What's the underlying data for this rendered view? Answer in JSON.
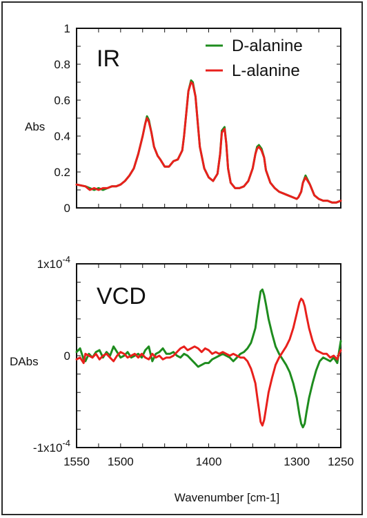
{
  "chart_data": [
    {
      "type": "line",
      "panel_label": "IR",
      "ylabel": "Abs",
      "ylim": [
        0,
        1
      ],
      "xlim": [
        1550,
        1250
      ],
      "y_ticks": [
        "1",
        "0.8",
        "0.6",
        "0.4",
        "0.2",
        "0"
      ],
      "y_tick_values": [
        1,
        0.8,
        0.6,
        0.4,
        0.2,
        0
      ],
      "legend_position": "top-right",
      "colors": {
        "D-alanine": "#1e8c1e",
        "L-alanine": "#e8201c"
      },
      "series": [
        {
          "name": "D-alanine",
          "x": [
            1550,
            1540,
            1535,
            1530,
            1525,
            1520,
            1515,
            1510,
            1505,
            1500,
            1495,
            1490,
            1485,
            1480,
            1475,
            1472,
            1470,
            1468,
            1465,
            1462,
            1458,
            1455,
            1450,
            1445,
            1440,
            1435,
            1430,
            1428,
            1425,
            1423,
            1420,
            1418,
            1415,
            1412,
            1410,
            1405,
            1400,
            1395,
            1390,
            1387,
            1385,
            1382,
            1380,
            1378,
            1375,
            1370,
            1365,
            1360,
            1355,
            1350,
            1347,
            1345,
            1343,
            1340,
            1337,
            1335,
            1330,
            1325,
            1320,
            1315,
            1310,
            1305,
            1300,
            1298,
            1295,
            1293,
            1290,
            1285,
            1280,
            1275,
            1270,
            1265,
            1260,
            1255,
            1250
          ],
          "y": [
            0.13,
            0.12,
            0.11,
            0.1,
            0.11,
            0.1,
            0.11,
            0.12,
            0.12,
            0.13,
            0.15,
            0.18,
            0.22,
            0.3,
            0.4,
            0.47,
            0.51,
            0.49,
            0.42,
            0.34,
            0.29,
            0.27,
            0.23,
            0.23,
            0.26,
            0.27,
            0.32,
            0.4,
            0.55,
            0.65,
            0.71,
            0.7,
            0.62,
            0.45,
            0.34,
            0.22,
            0.17,
            0.15,
            0.19,
            0.3,
            0.43,
            0.45,
            0.36,
            0.22,
            0.14,
            0.11,
            0.11,
            0.12,
            0.15,
            0.22,
            0.3,
            0.34,
            0.35,
            0.33,
            0.28,
            0.21,
            0.14,
            0.11,
            0.09,
            0.08,
            0.07,
            0.06,
            0.05,
            0.06,
            0.09,
            0.14,
            0.18,
            0.13,
            0.07,
            0.05,
            0.04,
            0.04,
            0.03,
            0.03,
            0.04
          ]
        },
        {
          "name": "L-alanine",
          "x": [
            1550,
            1540,
            1535,
            1530,
            1525,
            1520,
            1515,
            1510,
            1505,
            1500,
            1495,
            1490,
            1485,
            1480,
            1475,
            1472,
            1470,
            1468,
            1465,
            1462,
            1458,
            1455,
            1450,
            1445,
            1440,
            1435,
            1430,
            1428,
            1425,
            1423,
            1420,
            1418,
            1415,
            1412,
            1410,
            1405,
            1400,
            1395,
            1390,
            1387,
            1385,
            1382,
            1380,
            1378,
            1375,
            1370,
            1365,
            1360,
            1355,
            1350,
            1347,
            1345,
            1343,
            1340,
            1337,
            1335,
            1330,
            1325,
            1320,
            1315,
            1310,
            1305,
            1300,
            1298,
            1295,
            1293,
            1290,
            1285,
            1280,
            1275,
            1270,
            1265,
            1260,
            1255,
            1250
          ],
          "y": [
            0.13,
            0.12,
            0.1,
            0.11,
            0.1,
            0.11,
            0.11,
            0.12,
            0.12,
            0.13,
            0.15,
            0.18,
            0.22,
            0.3,
            0.4,
            0.47,
            0.5,
            0.48,
            0.42,
            0.34,
            0.29,
            0.27,
            0.23,
            0.23,
            0.26,
            0.27,
            0.32,
            0.4,
            0.55,
            0.65,
            0.7,
            0.69,
            0.62,
            0.45,
            0.34,
            0.22,
            0.17,
            0.15,
            0.19,
            0.3,
            0.42,
            0.44,
            0.36,
            0.22,
            0.14,
            0.11,
            0.11,
            0.12,
            0.15,
            0.22,
            0.3,
            0.33,
            0.34,
            0.32,
            0.28,
            0.21,
            0.14,
            0.11,
            0.09,
            0.08,
            0.07,
            0.06,
            0.05,
            0.06,
            0.09,
            0.14,
            0.17,
            0.13,
            0.07,
            0.05,
            0.04,
            0.04,
            0.03,
            0.03,
            0.04
          ]
        }
      ]
    },
    {
      "type": "line",
      "panel_label": "VCD",
      "ylabel": "DAbs",
      "xlabel": "Wavenumber [cm-1]",
      "ylim": [
        -0.0001,
        0.0001
      ],
      "xlim": [
        1550,
        1250
      ],
      "x_ticks": [
        "1550",
        "1500",
        "1400",
        "1300",
        "1250"
      ],
      "x_tick_values": [
        1550,
        1500,
        1400,
        1300,
        1250
      ],
      "y_ticks": [
        {
          "base": "1x10",
          "exp": "-4",
          "value": 0.0001
        },
        {
          "base": "0",
          "exp": "",
          "value": 0
        },
        {
          "base": "-1x10",
          "exp": "-4",
          "value": -0.0001
        }
      ],
      "colors": {
        "D-alanine": "#1e8c1e",
        "L-alanine": "#e8201c"
      },
      "series": [
        {
          "name": "D-alanine",
          "x": [
            1550,
            1546,
            1542,
            1540,
            1536,
            1532,
            1528,
            1524,
            1520,
            1516,
            1512,
            1508,
            1504,
            1500,
            1496,
            1492,
            1488,
            1484,
            1480,
            1476,
            1472,
            1468,
            1464,
            1460,
            1456,
            1452,
            1448,
            1444,
            1440,
            1436,
            1432,
            1428,
            1424,
            1420,
            1416,
            1412,
            1408,
            1404,
            1400,
            1396,
            1392,
            1388,
            1384,
            1380,
            1376,
            1372,
            1368,
            1364,
            1360,
            1356,
            1352,
            1350,
            1347,
            1345,
            1343,
            1341,
            1339,
            1337,
            1335,
            1332,
            1328,
            1324,
            1320,
            1316,
            1312,
            1308,
            1304,
            1300,
            1297,
            1295,
            1293,
            1291,
            1289,
            1286,
            1282,
            1278,
            1274,
            1270,
            1266,
            1262,
            1258,
            1254,
            1252,
            1250
          ],
          "y": [
            4e-06,
            8e-06,
            -4e-06,
            -6e-06,
            2e-06,
            -2e-06,
            4e-06,
            6e-06,
            -2e-06,
            4e-06,
            0,
            1e-05,
            4e-06,
            -2e-06,
            0,
            4e-06,
            -2e-06,
            0,
            2e-06,
            -2e-06,
            6e-06,
            1e-05,
            -6e-06,
            2e-06,
            4e-06,
            8e-06,
            2e-06,
            2e-06,
            4e-06,
            0,
            -2e-06,
            2e-06,
            0,
            -4e-06,
            -8e-06,
            -1.2e-05,
            -1e-05,
            -8e-06,
            -8e-06,
            -4e-06,
            -2e-06,
            0,
            2e-06,
            0,
            -2e-06,
            -6e-06,
            -2e-06,
            2e-06,
            4e-06,
            8e-06,
            1.4e-05,
            2e-05,
            3e-05,
            4.4e-05,
            5.8e-05,
            7e-05,
            7.2e-05,
            6.6e-05,
            5.6e-05,
            4e-05,
            2.4e-05,
            1e-05,
            2e-06,
            -4e-06,
            -1e-05,
            -1.8e-05,
            -3e-05,
            -4.6e-05,
            -6.4e-05,
            -7.4e-05,
            -7.8e-05,
            -7.4e-05,
            -6.2e-05,
            -4.6e-05,
            -3e-05,
            -1.6e-05,
            -6e-06,
            -2e-06,
            -4e-06,
            -6e-06,
            -2e-06,
            -8e-06,
            4e-06,
            1.6e-05
          ]
        },
        {
          "name": "L-alanine",
          "x": [
            1550,
            1546,
            1542,
            1540,
            1536,
            1532,
            1528,
            1524,
            1520,
            1516,
            1512,
            1508,
            1504,
            1500,
            1496,
            1492,
            1488,
            1484,
            1480,
            1476,
            1472,
            1468,
            1464,
            1460,
            1456,
            1452,
            1448,
            1444,
            1440,
            1436,
            1432,
            1428,
            1424,
            1420,
            1416,
            1412,
            1408,
            1404,
            1400,
            1396,
            1392,
            1388,
            1384,
            1380,
            1376,
            1372,
            1368,
            1364,
            1360,
            1356,
            1352,
            1350,
            1347,
            1345,
            1343,
            1341,
            1339,
            1337,
            1335,
            1332,
            1328,
            1324,
            1320,
            1316,
            1312,
            1308,
            1304,
            1300,
            1297,
            1295,
            1293,
            1291,
            1289,
            1286,
            1282,
            1278,
            1274,
            1270,
            1266,
            1262,
            1258,
            1254,
            1252,
            1250
          ],
          "y": [
            -4e-06,
            -2e-06,
            -8e-06,
            2e-06,
            0,
            -2e-06,
            2e-06,
            -4e-06,
            0,
            2e-06,
            -2e-06,
            -6e-06,
            0,
            4e-06,
            2e-06,
            -2e-06,
            0,
            2e-06,
            -2e-06,
            2e-06,
            -2e-06,
            -4e-06,
            2e-06,
            -2e-06,
            0,
            -4e-06,
            -2e-06,
            -2e-06,
            0,
            4e-06,
            8e-06,
            1e-05,
            6e-06,
            8e-06,
            1e-05,
            8e-06,
            4e-06,
            8e-06,
            6e-06,
            2e-06,
            4e-06,
            2e-06,
            4e-06,
            2e-06,
            0,
            2e-06,
            0,
            -2e-06,
            -2e-06,
            -6e-06,
            -1.4e-05,
            -2e-05,
            -3e-05,
            -4.4e-05,
            -5.8e-05,
            -7.2e-05,
            -7.6e-05,
            -7e-05,
            -5.8e-05,
            -4e-05,
            -2.4e-05,
            -1e-05,
            -2e-06,
            4e-06,
            1e-05,
            1.8e-05,
            3e-05,
            4.6e-05,
            5.8e-05,
            6.2e-05,
            6e-05,
            5.4e-05,
            4.4e-05,
            3e-05,
            1.6e-05,
            6e-06,
            4e-06,
            2e-06,
            2e-06,
            -2e-06,
            0,
            -4e-06,
            2e-06,
            6e-06
          ]
        }
      ]
    }
  ]
}
